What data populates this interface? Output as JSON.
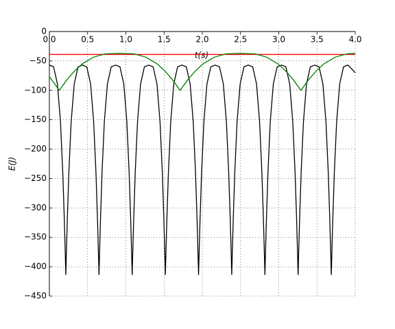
{
  "chart_data": {
    "type": "line",
    "xlabel": "t(s)",
    "ylabel": "E(J)",
    "xlim": [
      0,
      4
    ],
    "ylim": [
      -450,
      0
    ],
    "xticks": [
      {
        "value": 0,
        "label": "0.0"
      },
      {
        "value": 0.5,
        "label": "0.5"
      },
      {
        "value": 1,
        "label": "1.0"
      },
      {
        "value": 1.5,
        "label": "1.5"
      },
      {
        "value": 2,
        "label": "2.0"
      },
      {
        "value": 2.5,
        "label": "2.5"
      },
      {
        "value": 3,
        "label": "3.0"
      },
      {
        "value": 3.5,
        "label": "3.5"
      },
      {
        "value": 4,
        "label": "4.0"
      }
    ],
    "yticks": [
      0,
      {
        "value": -50,
        "label": "−50"
      },
      {
        "value": -100,
        "label": "−100"
      },
      {
        "value": -150,
        "label": "−150"
      },
      {
        "value": -200,
        "label": "−200"
      },
      {
        "value": -250,
        "label": "−250"
      },
      {
        "value": -300,
        "label": "−300"
      },
      {
        "value": -350,
        "label": "−350"
      },
      {
        "value": -400,
        "label": "−400"
      },
      {
        "value": -450,
        "label": "−450"
      }
    ],
    "grid": true,
    "series": [
      {
        "color": "#ff0000",
        "x": [
          0,
          4
        ],
        "values": [
          -39,
          -39
        ]
      },
      {
        "color": "#000000",
        "x": [
          0,
          0.055,
          0.105,
          0.145,
          0.175,
          0.195,
          0.205,
          0.215,
          0.225,
          0.235,
          0.255,
          0.285,
          0.325,
          0.375,
          0.432,
          0.489,
          0.539,
          0.579,
          0.609,
          0.629,
          0.639,
          0.649,
          0.659,
          0.669,
          0.689,
          0.719,
          0.759,
          0.809,
          0.866,
          0.923,
          0.973,
          1.013,
          1.043,
          1.063,
          1.073,
          1.083,
          1.093,
          1.103,
          1.123,
          1.153,
          1.193,
          1.243,
          1.3,
          1.357,
          1.407,
          1.447,
          1.477,
          1.497,
          1.507,
          1.517,
          1.527,
          1.537,
          1.557,
          1.587,
          1.627,
          1.677,
          1.734,
          1.791,
          1.841,
          1.881,
          1.911,
          1.931,
          1.941,
          1.951,
          1.961,
          1.971,
          1.991,
          2.021,
          2.061,
          2.111,
          2.168,
          2.225,
          2.275,
          2.315,
          2.345,
          2.365,
          2.375,
          2.385,
          2.395,
          2.405,
          2.425,
          2.455,
          2.495,
          2.545,
          2.602,
          2.659,
          2.709,
          2.749,
          2.779,
          2.799,
          2.809,
          2.819,
          2.829,
          2.839,
          2.859,
          2.889,
          2.929,
          2.979,
          3.036,
          3.093,
          3.143,
          3.183,
          3.213,
          3.233,
          3.243,
          3.253,
          3.263,
          3.273,
          3.293,
          3.323,
          3.363,
          3.413,
          3.47,
          3.527,
          3.577,
          3.617,
          3.647,
          3.667,
          3.677,
          3.687,
          3.697,
          3.707,
          3.727,
          3.757,
          3.797,
          3.847,
          3.904,
          4
        ],
        "values": [
          -57,
          -60,
          -89,
          -153,
          -239,
          -318,
          -364,
          -414,
          -364,
          -318,
          -239,
          -153,
          -89,
          -60,
          -57,
          -60,
          -89,
          -153,
          -239,
          -318,
          -364,
          -414,
          -364,
          -318,
          -239,
          -153,
          -89,
          -60,
          -57,
          -60,
          -89,
          -153,
          -239,
          -318,
          -364,
          -414,
          -364,
          -318,
          -239,
          -153,
          -89,
          -60,
          -57,
          -60,
          -89,
          -153,
          -239,
          -318,
          -364,
          -414,
          -364,
          -318,
          -239,
          -153,
          -89,
          -60,
          -57,
          -60,
          -89,
          -153,
          -239,
          -318,
          -364,
          -414,
          -364,
          -318,
          -239,
          -153,
          -89,
          -60,
          -57,
          -60,
          -89,
          -153,
          -239,
          -318,
          -364,
          -414,
          -364,
          -318,
          -239,
          -153,
          -89,
          -60,
          -57,
          -60,
          -89,
          -153,
          -239,
          -318,
          -364,
          -414,
          -364,
          -318,
          -239,
          -153,
          -89,
          -60,
          -57,
          -60,
          -89,
          -153,
          -239,
          -318,
          -364,
          -414,
          -364,
          -318,
          -239,
          -153,
          -89,
          -60,
          -57,
          -60,
          -89,
          -153,
          -239,
          -318,
          -364,
          -414,
          -364,
          -318,
          -239,
          -153,
          -89,
          -60,
          -57,
          -70
        ]
      },
      {
        "color": "#008000",
        "x": [
          0,
          0.03,
          0.08,
          0.13,
          0.18,
          0.23,
          0.33,
          0.43,
          0.58,
          0.73,
          0.92,
          1.11,
          1.26,
          1.41,
          1.51,
          1.61,
          1.66,
          1.71,
          1.76,
          1.81,
          1.91,
          2.01,
          2.16,
          2.31,
          2.5,
          2.69,
          2.84,
          2.99,
          3.09,
          3.19,
          3.24,
          3.29,
          3.34,
          3.39,
          3.49,
          3.59,
          3.74,
          3.89,
          4
        ],
        "values": [
          -77,
          -82,
          -91,
          -100,
          -91,
          -82,
          -67,
          -55,
          -43.5,
          -38,
          -37,
          -38,
          -43.5,
          -55,
          -67,
          -82,
          -91,
          -100,
          -91,
          -82,
          -67,
          -55,
          -43.5,
          -38,
          -37,
          -38,
          -43.5,
          -55,
          -67,
          -82,
          -91,
          -100,
          -91,
          -82,
          -67,
          -55,
          -43.5,
          -38,
          -37
        ]
      }
    ]
  }
}
